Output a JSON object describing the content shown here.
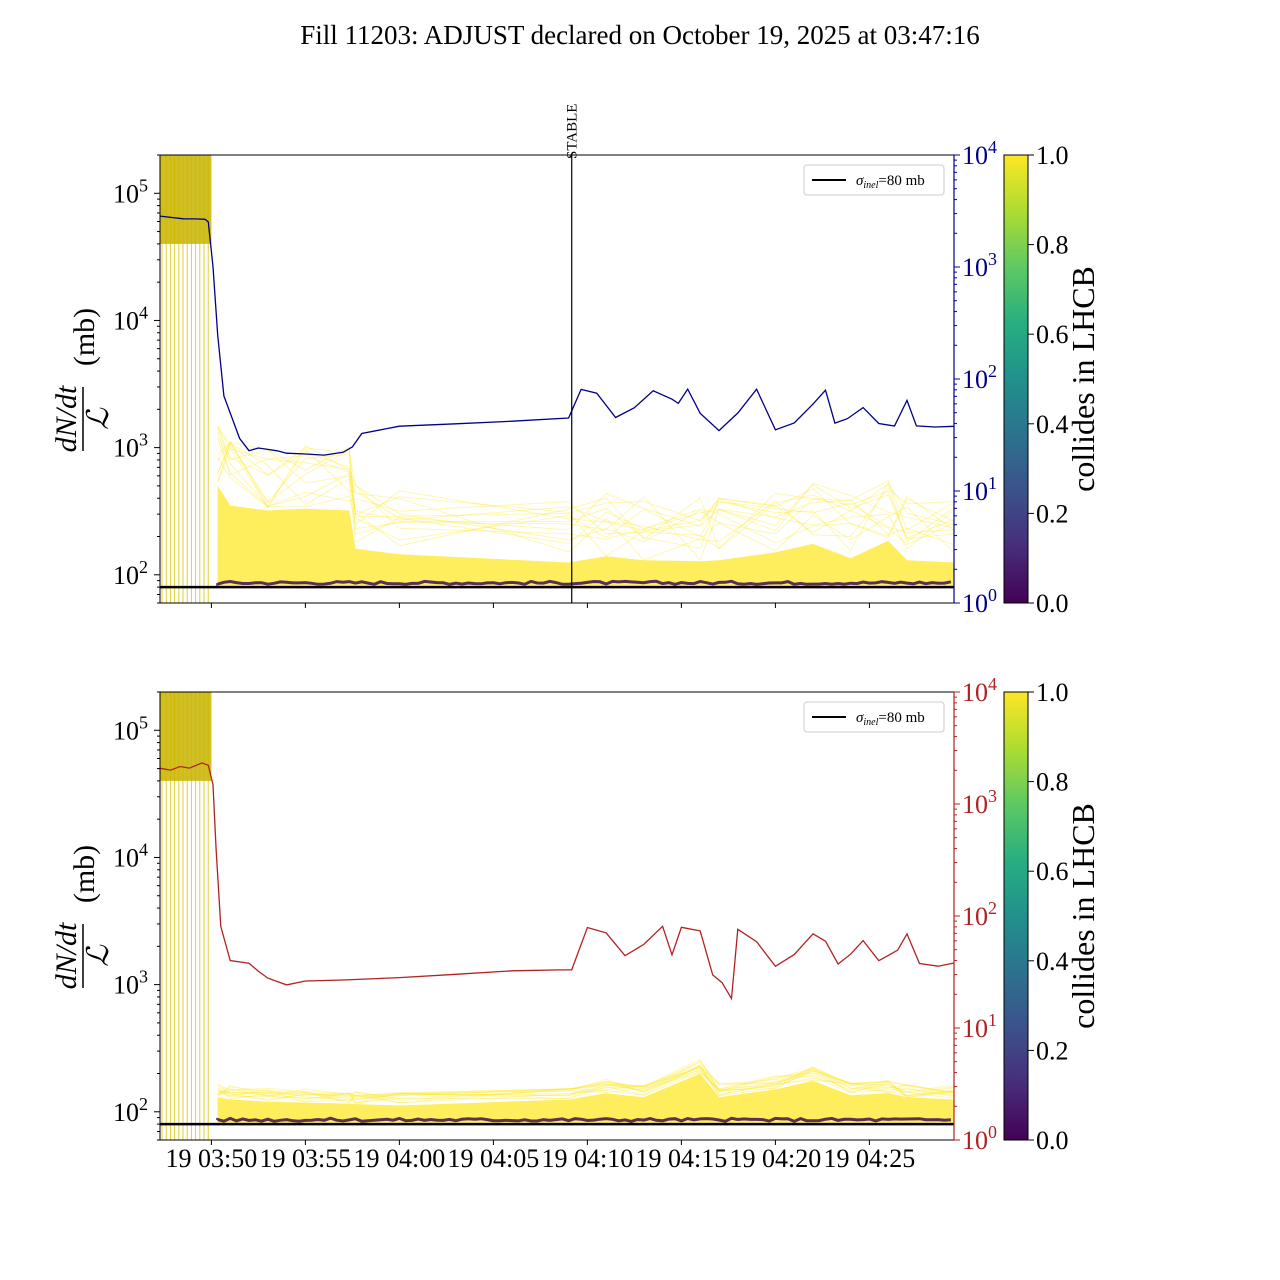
{
  "figure": {
    "title": "Fill 11203: ADJUST declared on October 19, 2025 at 03:47:16"
  },
  "chart_data": [
    {
      "type": "line",
      "panel": "top",
      "title": "",
      "ylabel_left": "dN/dt / L (mb)",
      "ylabel_left_parts": {
        "num": "dN/dt",
        "den": "ℒ",
        "unit": "(mb)"
      },
      "yscale_left": "log",
      "ylim_left": [
        60,
        200000
      ],
      "yticks_left": [
        {
          "v": 100,
          "label": "10",
          "exp": "2"
        },
        {
          "v": 1000,
          "label": "10",
          "exp": "3"
        },
        {
          "v": 10000,
          "label": "10",
          "exp": "4"
        },
        {
          "v": 100000,
          "label": "10",
          "exp": "5"
        }
      ],
      "yscale_right": "log",
      "ylim_right": [
        1,
        10000
      ],
      "yticks_right": [
        {
          "v": 1,
          "label": "10",
          "exp": "0"
        },
        {
          "v": 10,
          "label": "10",
          "exp": "1"
        },
        {
          "v": 100,
          "label": "10",
          "exp": "2"
        },
        {
          "v": 1000,
          "label": "10",
          "exp": "3"
        },
        {
          "v": 10000,
          "label": "10",
          "exp": "4"
        }
      ],
      "right_axis_color": "#00008b",
      "xlim": [
        "03:47:16",
        "04:29:30"
      ],
      "xtick_times": [
        "03:50",
        "03:55",
        "04:00",
        "04:05",
        "04:10",
        "04:15",
        "04:20",
        "04:25"
      ],
      "xtick_labels": [],
      "vline": {
        "x": "04:09:10",
        "label": "STABLE"
      },
      "hline": {
        "y": 80,
        "label": "σinel=80 mb"
      },
      "legend": {
        "placement": "top-right",
        "entries": [
          {
            "sym": "σ",
            "sub": "inel",
            "rest": "=80 mb"
          }
        ]
      },
      "series": [
        {
          "axis": "right",
          "color": "#00008b",
          "x": [
            "03:47:16",
            "03:48:30",
            "03:49:10",
            "03:49:40",
            "03:49:50",
            "03:50:05",
            "03:50:20",
            "03:50:40",
            "03:51:30",
            "03:52:00",
            "03:52:30",
            "03:53:00",
            "03:53:30",
            "03:54:00",
            "03:55:00",
            "03:56:00",
            "03:57:00",
            "03:57:30",
            "03:58:00",
            "04:00:00",
            "04:03:00",
            "04:06:00",
            "04:09:00",
            "04:09:40",
            "04:10:30",
            "04:11:30",
            "04:12:30",
            "04:13:30",
            "04:14:30",
            "04:14:50",
            "04:15:20",
            "04:16:00",
            "04:17:00",
            "04:18:00",
            "04:19:00",
            "04:20:00",
            "04:21:00",
            "04:22:00",
            "04:22:40",
            "04:23:10",
            "04:23:50",
            "04:24:40",
            "04:25:30",
            "04:26:20",
            "04:27:00",
            "04:27:30",
            "04:28:30",
            "04:29:30"
          ],
          "y": [
            2900,
            2700,
            2700,
            2700,
            2500,
            1000,
            250,
            70,
            30,
            23,
            24,
            24,
            23,
            22,
            21,
            21,
            22,
            25,
            32,
            38,
            40,
            42,
            44,
            80,
            75,
            45,
            55,
            80,
            65,
            60,
            80,
            50,
            35,
            50,
            80,
            35,
            40,
            60,
            80,
            40,
            45,
            55,
            40,
            38,
            65,
            38,
            38,
            38
          ]
        }
      ],
      "colorbar": {
        "label": "collides in LHCB",
        "range": [
          0.0,
          1.0
        ],
        "ticks": [
          "0.0",
          "0.2",
          "0.4",
          "0.6",
          "0.8",
          "1.0"
        ],
        "colormap": "viridis"
      }
    },
    {
      "type": "line",
      "panel": "bottom",
      "title": "",
      "ylabel_left": "dN/dt / L (mb)",
      "ylabel_left_parts": {
        "num": "dN/dt",
        "den": "ℒ",
        "unit": "(mb)"
      },
      "yscale_left": "log",
      "ylim_left": [
        60,
        200000
      ],
      "yticks_left": [
        {
          "v": 100,
          "label": "10",
          "exp": "2"
        },
        {
          "v": 1000,
          "label": "10",
          "exp": "3"
        },
        {
          "v": 10000,
          "label": "10",
          "exp": "4"
        },
        {
          "v": 100000,
          "label": "10",
          "exp": "5"
        }
      ],
      "yscale_right": "log",
      "ylim_right": [
        1,
        10000
      ],
      "yticks_right": [
        {
          "v": 1,
          "label": "10",
          "exp": "0"
        },
        {
          "v": 10,
          "label": "10",
          "exp": "1"
        },
        {
          "v": 100,
          "label": "10",
          "exp": "2"
        },
        {
          "v": 1000,
          "label": "10",
          "exp": "3"
        },
        {
          "v": 10000,
          "label": "10",
          "exp": "4"
        }
      ],
      "right_axis_color": "#b22222",
      "xlim": [
        "03:47:16",
        "04:29:30"
      ],
      "xtick_times": [
        "03:50",
        "03:55",
        "04:00",
        "04:05",
        "04:10",
        "04:15",
        "04:20",
        "04:25"
      ],
      "xtick_labels": [
        "19 03:50",
        "19 03:55",
        "19 04:00",
        "19 04:05",
        "19 04:10",
        "19 04:15",
        "19 04:20",
        "19 04:25"
      ],
      "hline": {
        "y": 80,
        "label": "σinel=80 mb"
      },
      "legend": {
        "placement": "top-right",
        "entries": [
          {
            "sym": "σ",
            "sub": "inel",
            "rest": "=80 mb"
          }
        ]
      },
      "series": [
        {
          "axis": "right",
          "color": "#b22222",
          "x": [
            "03:47:16",
            "03:47:50",
            "03:48:20",
            "03:48:50",
            "03:49:30",
            "03:49:50",
            "03:50:05",
            "03:50:15",
            "03:50:30",
            "03:51:00",
            "03:52:00",
            "03:52:30",
            "03:53:00",
            "03:54:00",
            "03:55:00",
            "03:57:00",
            "04:00:00",
            "04:03:00",
            "04:06:00",
            "04:08:30",
            "04:09:10",
            "04:10:00",
            "04:11:00",
            "04:12:00",
            "04:13:00",
            "04:14:00",
            "04:14:30",
            "04:15:00",
            "04:16:00",
            "04:16:40",
            "04:17:10",
            "04:17:40",
            "04:18:00",
            "04:19:00",
            "04:20:00",
            "04:21:00",
            "04:22:00",
            "04:22:40",
            "04:23:20",
            "04:24:00",
            "04:24:40",
            "04:25:30",
            "04:26:30",
            "04:27:00",
            "04:27:40",
            "04:28:40",
            "04:29:30"
          ],
          "y": [
            2100,
            2000,
            2200,
            2100,
            2300,
            2200,
            1500,
            400,
            80,
            40,
            38,
            32,
            28,
            24,
            26,
            27,
            28,
            30,
            32,
            33,
            33,
            80,
            70,
            45,
            55,
            80,
            45,
            80,
            75,
            30,
            25,
            18,
            75,
            60,
            35,
            45,
            70,
            60,
            38,
            45,
            60,
            40,
            50,
            70,
            38,
            35,
            38
          ]
        }
      ],
      "colorbar": {
        "label": "collides in LHCB",
        "range": [
          0.0,
          1.0
        ],
        "ticks": [
          "0.0",
          "0.2",
          "0.4",
          "0.6",
          "0.8",
          "1.0"
        ],
        "colormap": "viridis"
      }
    }
  ]
}
